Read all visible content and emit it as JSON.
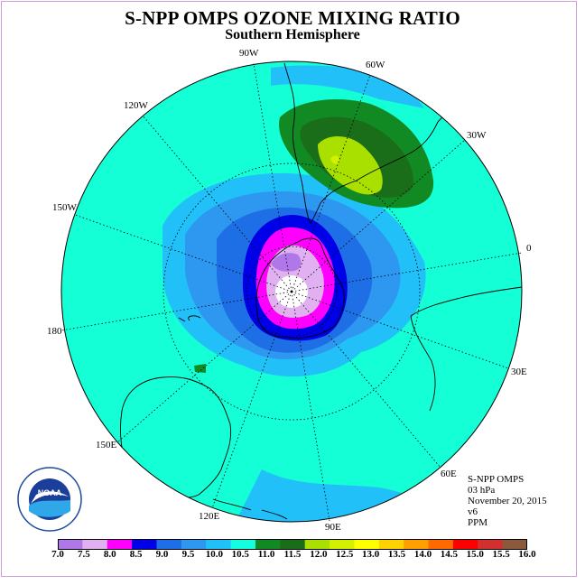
{
  "header": {
    "title": "S-NPP OMPS OZONE MIXING RATIO",
    "subtitle": "Southern Hemisphere"
  },
  "longitude_labels": [
    "90W",
    "60W",
    "30W",
    "0",
    "30E",
    "60E",
    "90E",
    "120E",
    "150E",
    "180",
    "150W",
    "120W"
  ],
  "info": {
    "instrument": "S-NPP OMPS",
    "level": "03 hPa",
    "date": "November 20, 2015",
    "version": "v6",
    "units": "PPM"
  },
  "colorbar": {
    "ticks": [
      "7.0",
      "7.5",
      "8.0",
      "8.5",
      "9.0",
      "9.5",
      "10.0",
      "10.5",
      "11.0",
      "11.5",
      "12.0",
      "12.5",
      "13.0",
      "13.5",
      "14.0",
      "14.5",
      "15.0",
      "15.5",
      "16.0"
    ],
    "colors": [
      "#b077e8",
      "#e0b0f0",
      "#ff00ff",
      "#0000e8",
      "#1e6ee6",
      "#2e98f0",
      "#22c0f8",
      "#14ffe0",
      "#128a24",
      "#1a6e1a",
      "#aae000",
      "#d2f000",
      "#ffff00",
      "#ffd200",
      "#ffa000",
      "#ff6a00",
      "#ff0000",
      "#d23030",
      "#8b5a3c"
    ]
  },
  "colors": {
    "background_field": "#14ffd6",
    "frame": "#c8a0d8"
  },
  "logo": {
    "text": "NOAA",
    "ring_text": "NATIONAL OCEANIC AND ATMOSPHERIC ADMINISTRATION · U.S. DEPARTMENT OF COMMERCE"
  }
}
